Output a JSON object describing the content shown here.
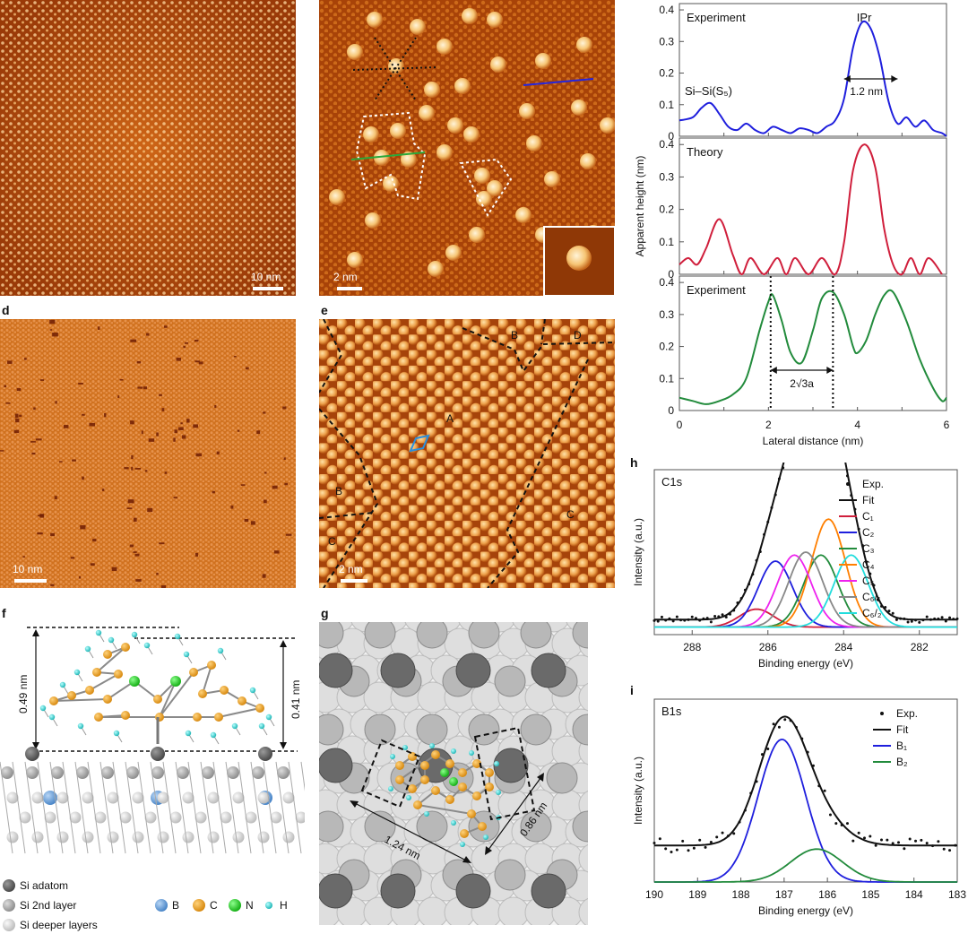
{
  "panel_labels": {
    "d": "d",
    "e": "e",
    "f": "f",
    "g": "g",
    "h": "h",
    "i": "i"
  },
  "panel_a": {
    "scalebar": "10 nm"
  },
  "panel_b": {
    "scalebar": "2 nm"
  },
  "panel_d": {
    "scalebar": "10 nm"
  },
  "panel_e": {
    "scalebar": "2 nm",
    "domains": [
      "A",
      "B",
      "B",
      "C",
      "C",
      "D"
    ]
  },
  "panel_f": {
    "dim_left": "0.49 nm",
    "dim_right": "0.41 nm",
    "legend": [
      {
        "label": "Si adatom",
        "color": "#6b6b6b"
      },
      {
        "label": "Si 2nd layer",
        "color": "#b4b4b4"
      },
      {
        "label": "Si deeper layers",
        "color": "#e2e2e2"
      },
      {
        "label": "B",
        "color": "#6fa8dc"
      },
      {
        "label": "C",
        "color": "#f0a425"
      },
      {
        "label": "N",
        "color": "#22dd22"
      },
      {
        "label": "H",
        "color": "#38d6d6"
      }
    ]
  },
  "panel_g": {
    "dim_long": "1.24 nm",
    "dim_short": "0.86 nm"
  },
  "colors": {
    "exp_blue": "#1f1fdd",
    "theory_red": "#d01f3c",
    "exp_green": "#228b3c",
    "stm_dark": "#8a2e05",
    "stm_mid": "#c85a12",
    "stm_bright": "#f5c77a"
  },
  "chart_data": [
    {
      "type": "line",
      "title": "",
      "xlabel": "Lateral distance (nm)",
      "ylabel": "Apparent height (nm)",
      "xlim": [
        0,
        6
      ],
      "xticks": [
        "0",
        "2",
        "4",
        "6"
      ],
      "subpanels": [
        {
          "name": "Experiment",
          "color": "#1f1fdd",
          "ylim": [
            0,
            0.42
          ],
          "yticks": [
            "0",
            "0.1",
            "0.2",
            "0.3",
            "0.4"
          ],
          "annotations": [
            "IPr",
            "Si–Si(S₅)",
            "1.2 nm"
          ],
          "x": [
            0,
            0.3,
            0.5,
            0.7,
            0.9,
            1.1,
            1.3,
            1.5,
            1.7,
            1.9,
            2.1,
            2.3,
            2.5,
            2.7,
            2.9,
            3.1,
            3.3,
            3.5,
            3.7,
            3.9,
            4.1,
            4.3,
            4.5,
            4.7,
            4.9,
            5.1,
            5.3,
            5.5,
            5.7,
            5.9,
            6.0
          ],
          "y": [
            0.05,
            0.06,
            0.09,
            0.105,
            0.07,
            0.03,
            0.02,
            0.04,
            0.02,
            0.01,
            0.03,
            0.02,
            0.01,
            0.025,
            0.02,
            0.01,
            0.03,
            0.05,
            0.12,
            0.28,
            0.36,
            0.34,
            0.25,
            0.11,
            0.04,
            0.06,
            0.03,
            0.05,
            0.02,
            0.01,
            0.0
          ]
        },
        {
          "name": "Theory",
          "color": "#d01f3c",
          "ylim": [
            0,
            0.42
          ],
          "yticks": [
            "0",
            "0.1",
            "0.2",
            "0.3",
            "0.4"
          ],
          "x": [
            0,
            0.2,
            0.4,
            0.6,
            0.9,
            1.2,
            1.4,
            1.6,
            1.9,
            2.2,
            2.4,
            2.6,
            2.9,
            3.2,
            3.5,
            3.7,
            3.9,
            4.15,
            4.4,
            4.6,
            4.8,
            5.0,
            5.2,
            5.4,
            5.6,
            5.9
          ],
          "y": [
            0.03,
            0.05,
            0.03,
            0.08,
            0.17,
            0.06,
            0.0,
            0.05,
            0.0,
            0.05,
            0.0,
            0.05,
            0.0,
            0.05,
            0.0,
            0.1,
            0.32,
            0.4,
            0.33,
            0.14,
            0.03,
            0.0,
            0.05,
            0.0,
            0.05,
            0.0
          ]
        },
        {
          "name": "Experiment",
          "color": "#228b3c",
          "ylim": [
            0,
            0.42
          ],
          "yticks": [
            "0",
            "0.1",
            "0.2",
            "0.3",
            "0.4"
          ],
          "annotations": [
            "2√3a"
          ],
          "x": [
            0,
            0.3,
            0.6,
            0.9,
            1.2,
            1.5,
            1.8,
            2.0,
            2.1,
            2.3,
            2.5,
            2.75,
            3.0,
            3.2,
            3.45,
            3.7,
            3.9,
            4.0,
            4.2,
            4.4,
            4.6,
            4.8,
            5.1,
            5.4,
            5.7,
            5.9,
            6.0
          ],
          "y": [
            0.04,
            0.03,
            0.02,
            0.03,
            0.05,
            0.1,
            0.25,
            0.34,
            0.36,
            0.28,
            0.18,
            0.15,
            0.25,
            0.35,
            0.37,
            0.3,
            0.2,
            0.18,
            0.22,
            0.3,
            0.36,
            0.37,
            0.28,
            0.16,
            0.07,
            0.03,
            0.04
          ]
        }
      ]
    },
    {
      "type": "line",
      "title": "C1s",
      "xlabel": "Binding energy (eV)",
      "ylabel": "Intensity (a.u.)",
      "xlim": [
        289,
        281
      ],
      "xticks": [
        "288",
        "286",
        "284",
        "282"
      ],
      "legend": [
        "Exp.",
        "Fit",
        "C₁",
        "C₂",
        "C₃",
        "C₄",
        "C₅",
        "C₆/₁",
        "C₆/₂"
      ],
      "components": [
        {
          "name": "C1",
          "color": "#d01f3c",
          "center": 286.3,
          "amp": 0.06,
          "width": 0.45
        },
        {
          "name": "C2",
          "color": "#1f1fdd",
          "center": 285.8,
          "amp": 0.22,
          "width": 0.45
        },
        {
          "name": "C3",
          "color": "#228b3c",
          "center": 284.6,
          "amp": 0.24,
          "width": 0.45
        },
        {
          "name": "C4",
          "color": "#ff7f00",
          "center": 284.4,
          "amp": 0.36,
          "width": 0.45
        },
        {
          "name": "C5",
          "color": "#ee22ee",
          "center": 285.3,
          "amp": 0.24,
          "width": 0.45
        },
        {
          "name": "C6/1",
          "color": "#888888",
          "center": 285.0,
          "amp": 0.25,
          "width": 0.45
        },
        {
          "name": "C6/2",
          "color": "#22dddd",
          "center": 283.8,
          "amp": 0.24,
          "width": 0.45
        }
      ],
      "baseline": 0.05
    },
    {
      "type": "line",
      "title": "B1s",
      "xlabel": "Binding energy (eV)",
      "ylabel": "Intensity (a.u.)",
      "xlim": [
        190,
        183
      ],
      "xticks": [
        "190",
        "189",
        "188",
        "187",
        "186",
        "185",
        "184",
        "183"
      ],
      "legend": [
        "Exp.",
        "Fit",
        "B₁",
        "B₂"
      ],
      "components": [
        {
          "name": "B1",
          "color": "#1f1fdd",
          "center": 187.05,
          "amp": 0.78,
          "width": 0.55
        },
        {
          "name": "B2",
          "color": "#228b3c",
          "center": 186.25,
          "amp": 0.18,
          "width": 0.6
        }
      ],
      "baseline": 0.2
    }
  ]
}
